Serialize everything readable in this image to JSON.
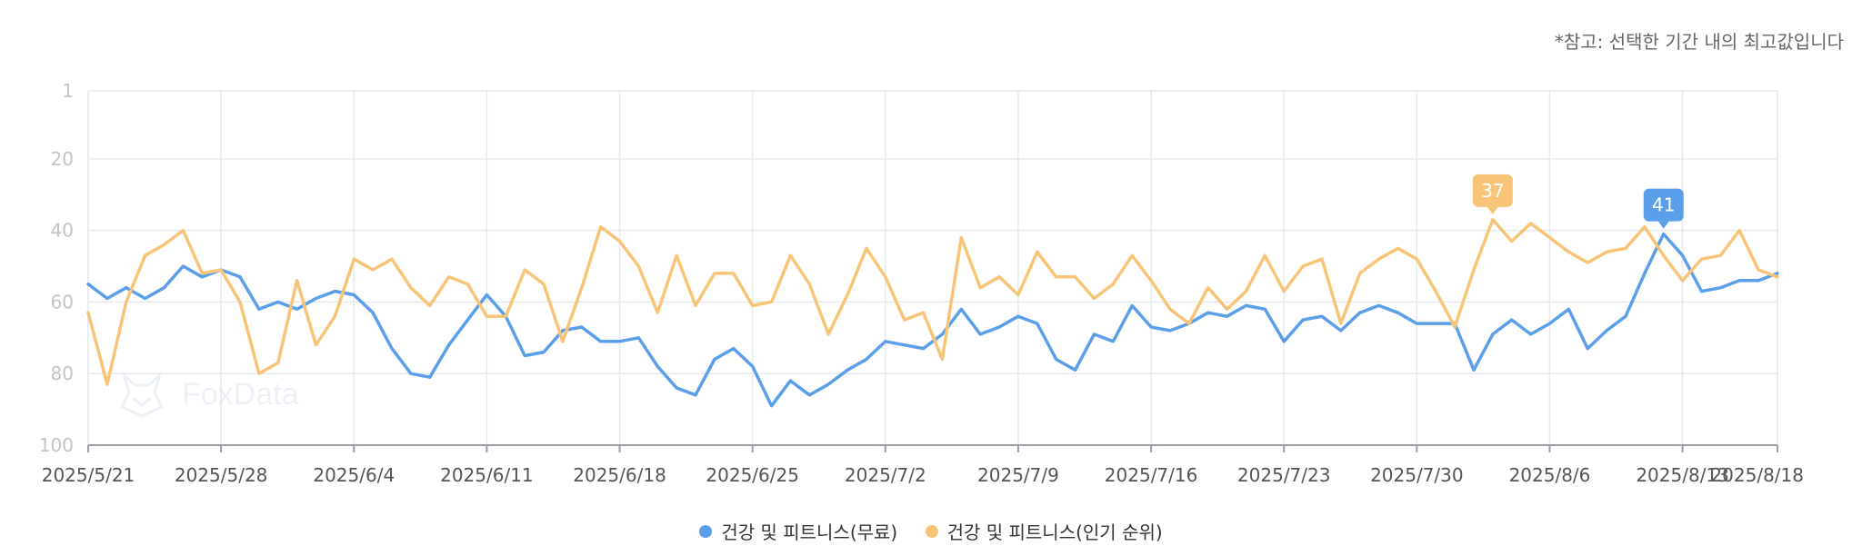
{
  "note": "*참고: 선택한 기간 내의 최고값입니다",
  "watermark": "FoxData",
  "colors": {
    "free": "#5b9ee9",
    "popular": "#f8c578",
    "grid": "#e6e9ee",
    "axis": "#9aa0a6"
  },
  "chart_data": {
    "type": "line",
    "y_reversed": true,
    "ylim": [
      1,
      100
    ],
    "yticks": [
      "1",
      "20",
      "40",
      "60",
      "80",
      "100"
    ],
    "xticks": [
      "2025/5/21",
      "2025/5/28",
      "2025/6/4",
      "2025/6/11",
      "2025/6/18",
      "2025/6/25",
      "2025/7/2",
      "2025/7/9",
      "2025/7/16",
      "2025/7/23",
      "2025/7/30",
      "2025/8/6",
      "2025/8/13",
      "2025/8/18"
    ],
    "x_start": "2025/5/21",
    "x_end": "2025/8/18",
    "series": [
      {
        "name": "건강 및 피트니스(무료)",
        "color": "#5b9ee9",
        "values": [
          55,
          59,
          56,
          59,
          56,
          50,
          53,
          51,
          53,
          62,
          60,
          62,
          59,
          57,
          58,
          63,
          73,
          80,
          81,
          72,
          65,
          58,
          64,
          75,
          74,
          68,
          67,
          71,
          71,
          70,
          78,
          84,
          86,
          76,
          73,
          78,
          89,
          82,
          86,
          83,
          79,
          76,
          71,
          72,
          73,
          69,
          62,
          69,
          67,
          64,
          66,
          76,
          79,
          69,
          71,
          61,
          67,
          68,
          66,
          63,
          64,
          61,
          62,
          71,
          65,
          64,
          68,
          63,
          61,
          63,
          66,
          66,
          66,
          79,
          69,
          65,
          69,
          66,
          62,
          73,
          68,
          64,
          52,
          41,
          47,
          57,
          56,
          54,
          54,
          52
        ],
        "peak_label": "41"
      },
      {
        "name": "건강 및 피트니스(인기 순위)",
        "color": "#f8c578",
        "values": [
          63,
          83,
          60,
          47,
          44,
          40,
          52,
          51,
          60,
          80,
          77,
          54,
          72,
          64,
          48,
          51,
          48,
          56,
          61,
          53,
          55,
          64,
          64,
          51,
          55,
          71,
          56,
          39,
          43,
          50,
          63,
          47,
          61,
          52,
          52,
          61,
          60,
          47,
          55,
          69,
          58,
          45,
          53,
          65,
          63,
          76,
          42,
          56,
          53,
          58,
          46,
          53,
          53,
          59,
          55,
          47,
          54,
          62,
          66,
          56,
          62,
          57,
          47,
          57,
          50,
          48,
          66,
          52,
          48,
          45,
          48,
          57,
          67,
          51,
          37,
          43,
          38,
          42,
          46,
          49,
          46,
          45,
          39,
          47,
          54,
          48,
          47,
          40,
          51,
          53
        ],
        "peak_label": "37"
      }
    ]
  }
}
